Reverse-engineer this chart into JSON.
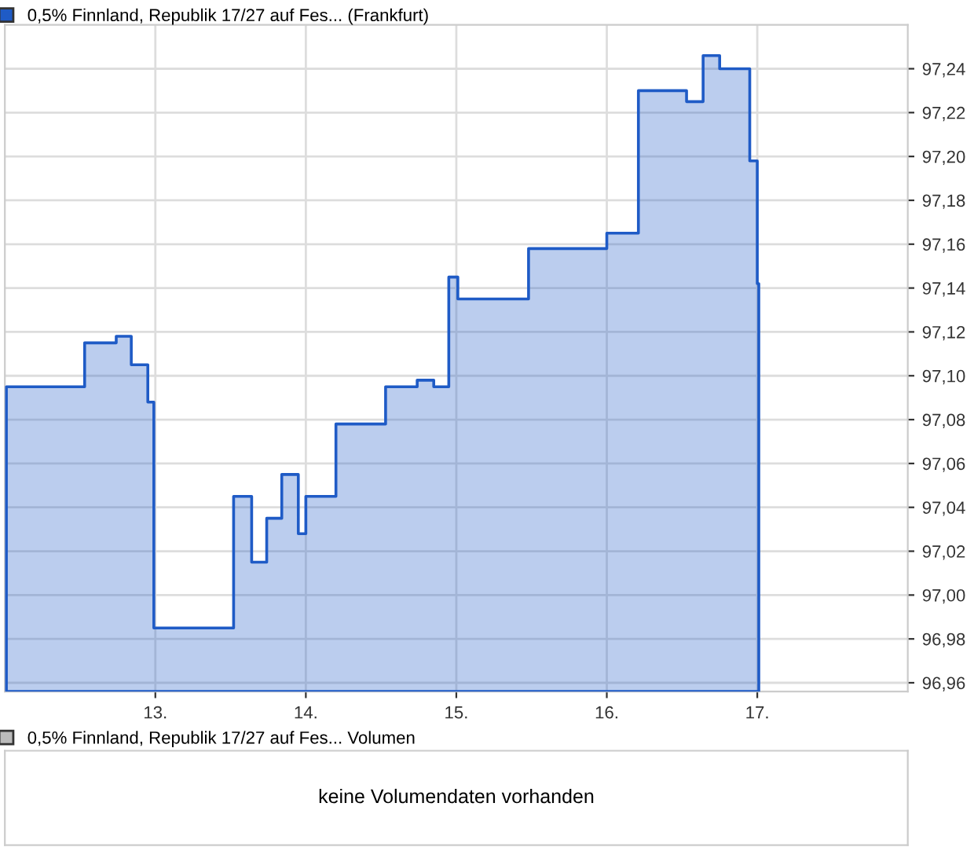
{
  "chart_data": [
    {
      "type": "area",
      "legend": "top left",
      "grid": true,
      "x": [
        12.01,
        12.53,
        12.74,
        12.84,
        12.95,
        12.99,
        13.52,
        13.64,
        13.74,
        13.84,
        13.95,
        14.0,
        14.2,
        14.53,
        14.74,
        14.85,
        14.95,
        15.01,
        15.48,
        16.0,
        16.21,
        16.53,
        16.64,
        16.75,
        16.95,
        17.0,
        17.01
      ],
      "series": [
        {
          "name": "0,5% Finnland, Republik 17/27 auf Fes... (Frankfurt)",
          "color": "#1f5bc6",
          "values": [
            97.095,
            97.115,
            97.118,
            97.105,
            97.088,
            96.985,
            97.045,
            97.015,
            97.035,
            97.055,
            97.028,
            97.045,
            97.078,
            97.095,
            97.098,
            97.095,
            97.145,
            97.135,
            97.158,
            97.165,
            97.23,
            97.225,
            97.246,
            97.24,
            97.198,
            97.142,
            97.125
          ]
        }
      ],
      "xlim": [
        12.0,
        18.0
      ],
      "xticks": [
        {
          "value": 13,
          "label": "13."
        },
        {
          "value": 14,
          "label": "14."
        },
        {
          "value": 15,
          "label": "15."
        },
        {
          "value": 16,
          "label": "16."
        },
        {
          "value": 17,
          "label": "17."
        }
      ],
      "ylim": [
        96.956,
        97.26
      ],
      "yticks": [
        {
          "value": 96.96,
          "label": "96,96"
        },
        {
          "value": 96.98,
          "label": "96,98"
        },
        {
          "value": 97.0,
          "label": "97,00"
        },
        {
          "value": 97.02,
          "label": "97,02"
        },
        {
          "value": 97.04,
          "label": "97,04"
        },
        {
          "value": 97.06,
          "label": "97,06"
        },
        {
          "value": 97.08,
          "label": "97,08"
        },
        {
          "value": 97.1,
          "label": "97,10"
        },
        {
          "value": 97.12,
          "label": "97,12"
        },
        {
          "value": 97.14,
          "label": "97,14"
        },
        {
          "value": 97.16,
          "label": "97,16"
        },
        {
          "value": 97.18,
          "label": "97,18"
        },
        {
          "value": 97.2,
          "label": "97,20"
        },
        {
          "value": 97.22,
          "label": "97,22"
        },
        {
          "value": 97.24,
          "label": "97,24"
        }
      ]
    },
    {
      "type": "other",
      "title": "0,5% Finnland, Republik 17/27 auf Fes... Volumen",
      "annotations": [
        "keine Volumendaten vorhanden"
      ]
    }
  ]
}
